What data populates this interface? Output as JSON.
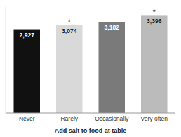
{
  "chart_data": {
    "type": "bar",
    "xlabel": "Add salt to food at table",
    "categories": [
      "Never",
      "Rarely",
      "Occasionally",
      "Very often"
    ],
    "values": [
      2927,
      3074,
      3182,
      3396
    ],
    "value_labels": [
      "2,927",
      "3,074",
      "3,182",
      "3,396"
    ],
    "colors": [
      "#111111",
      "#d9d9d9",
      "#7a7a7a",
      "#bbbbbb"
    ],
    "ylim": [
      0,
      3700
    ],
    "data_labels": true,
    "tick_labels": "x",
    "annotations": [
      {
        "text": "*",
        "x": "Rarely"
      },
      {
        "text": "*",
        "x": "Very often"
      }
    ]
  }
}
